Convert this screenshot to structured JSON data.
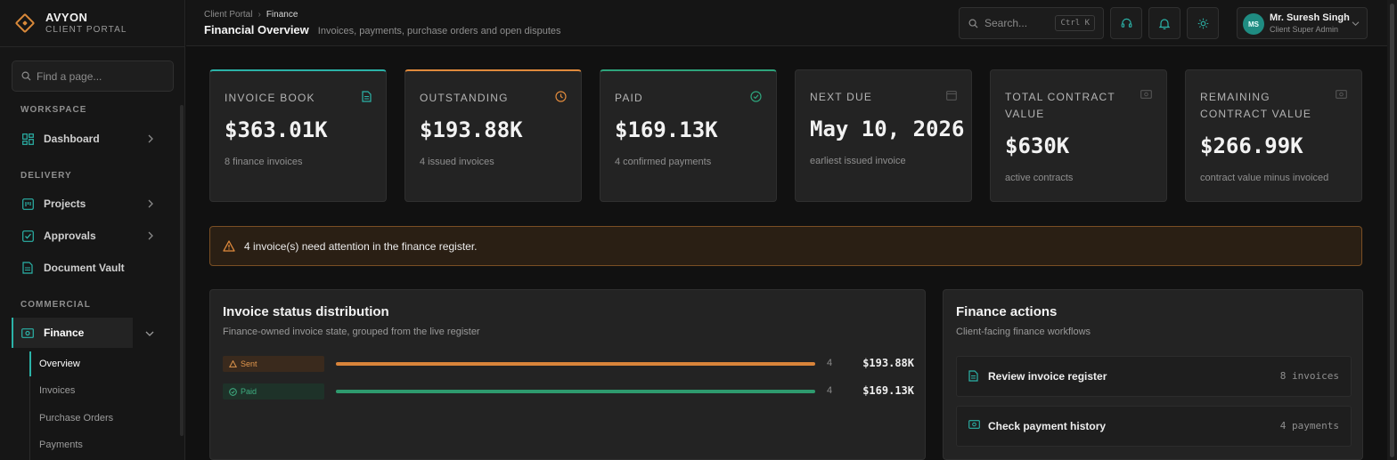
{
  "brand": {
    "name": "AVYON",
    "subtitle": "CLIENT PORTAL"
  },
  "sidebar": {
    "find_placeholder": "Find a page...",
    "sections": {
      "workspace": "WORKSPACE",
      "delivery": "DELIVERY",
      "commercial": "COMMERCIAL"
    },
    "items": {
      "dashboard": "Dashboard",
      "projects": "Projects",
      "approvals": "Approvals",
      "document_vault": "Document Vault",
      "finance": "Finance"
    },
    "finance_sub": [
      "Overview",
      "Invoices",
      "Purchase Orders",
      "Payments"
    ]
  },
  "header": {
    "breadcrumb_root": "Client Portal",
    "breadcrumb_current": "Finance",
    "title": "Financial Overview",
    "description": "Invoices, payments, purchase orders and open disputes",
    "search_placeholder": "Search...",
    "search_shortcut": "Ctrl K",
    "user_initials": "MS",
    "user_name": "Mr. Suresh Singh",
    "user_role": "Client Super Admin"
  },
  "kpis": [
    {
      "label": "INVOICE BOOK",
      "value": "$363.01K",
      "sub": "8 finance invoices",
      "icon": "document-icon"
    },
    {
      "label": "OUTSTANDING",
      "value": "$193.88K",
      "sub": "4 issued invoices",
      "icon": "clock-icon"
    },
    {
      "label": "PAID",
      "value": "$169.13K",
      "sub": "4 confirmed payments",
      "icon": "check-circle-icon"
    },
    {
      "label": "NEXT DUE",
      "value": "May 10, 2026",
      "sub": "earliest issued invoice",
      "icon": "calendar-icon"
    },
    {
      "label": "TOTAL CONTRACT VALUE",
      "value": "$630K",
      "sub": "active contracts",
      "icon": "banknote-icon"
    },
    {
      "label": "REMAINING CONTRACT VALUE",
      "value": "$266.99K",
      "sub": "contract value minus invoiced",
      "icon": "banknote-icon"
    }
  ],
  "alert": {
    "text": "4 invoice(s) need attention in the finance register."
  },
  "distribution": {
    "title": "Invoice status distribution",
    "subtitle": "Finance-owned invoice state, grouped from the live register",
    "rows": [
      {
        "status": "Sent",
        "count": "4",
        "amount": "$193.88K",
        "color": "#d9843a",
        "fill": 1.0
      },
      {
        "status": "Paid",
        "count": "4",
        "amount": "$169.13K",
        "color": "#2e9a6e",
        "fill": 1.0
      }
    ]
  },
  "actions": {
    "title": "Finance actions",
    "subtitle": "Client-facing finance workflows",
    "items": [
      {
        "label": "Review invoice register",
        "count": "8 invoices"
      },
      {
        "label": "Check payment history",
        "count": "4 payments"
      }
    ]
  },
  "colors": {
    "teal": "#2bb3a8",
    "orange": "#e08a3c",
    "green": "#2ea47c"
  }
}
